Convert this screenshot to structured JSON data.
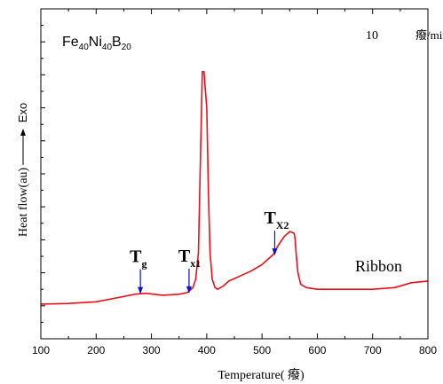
{
  "chart_data": {
    "type": "line",
    "title": "",
    "sample_label": {
      "base": "Fe",
      "s1": "40",
      "mid": "Ni",
      "s2": "40",
      "end": "B",
      "s3": "20"
    },
    "rate_label": "10",
    "rate_unit": "癈/min",
    "xlabel": "Temperature(     癈)",
    "ylabel": "Heat flow(au)",
    "exo_label": "Exo",
    "xlim": [
      100,
      800
    ],
    "x_ticks": [
      100,
      200,
      300,
      400,
      500,
      600,
      700,
      800
    ],
    "ylim": [
      0,
      1
    ],
    "grid": false,
    "line_color": "#e8101a",
    "arrow_color": "#1010cc",
    "series": [
      {
        "name": "Ribbon",
        "x": [
          100,
          150,
          200,
          240,
          270,
          290,
          320,
          350,
          365,
          375,
          380,
          385,
          388,
          392,
          395,
          400,
          403,
          406,
          410,
          415,
          420,
          430,
          440,
          460,
          480,
          500,
          520,
          530,
          540,
          550,
          558,
          560,
          562,
          565,
          570,
          580,
          600,
          650,
          700,
          740,
          770,
          800
        ],
        "y": [
          0.105,
          0.107,
          0.112,
          0.125,
          0.135,
          0.138,
          0.132,
          0.135,
          0.14,
          0.155,
          0.18,
          0.26,
          0.5,
          0.81,
          0.81,
          0.7,
          0.45,
          0.26,
          0.18,
          0.155,
          0.15,
          0.16,
          0.175,
          0.19,
          0.205,
          0.225,
          0.255,
          0.285,
          0.31,
          0.325,
          0.32,
          0.3,
          0.25,
          0.2,
          0.165,
          0.155,
          0.15,
          0.15,
          0.15,
          0.155,
          0.17,
          0.175
        ]
      }
    ],
    "annotations": [
      {
        "main": "T",
        "sub": "g",
        "x": 280,
        "y": 0.138
      },
      {
        "main": "T",
        "sub": "x1",
        "x": 368,
        "y": 0.14
      },
      {
        "main": "T",
        "sub": "X2",
        "x": 523,
        "y": 0.255
      }
    ],
    "series_label": "Ribbon"
  }
}
